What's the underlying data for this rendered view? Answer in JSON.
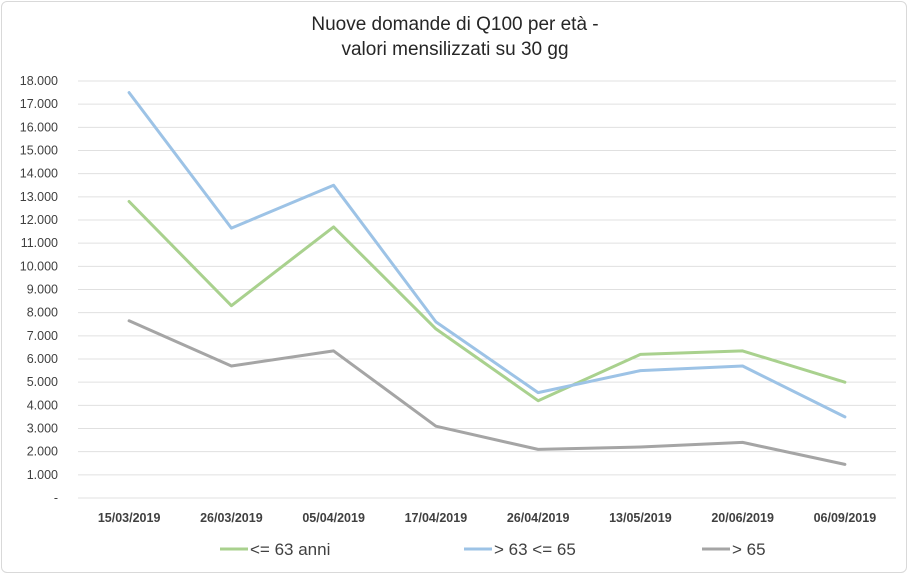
{
  "chart_data": {
    "type": "line",
    "title_lines": [
      "Nuove domande di Q100 per età -",
      "valori mensilizzati su 30 gg"
    ],
    "categories": [
      "15/03/2019",
      "26/03/2019",
      "05/04/2019",
      "17/04/2019",
      "26/04/2019",
      "13/05/2019",
      "20/06/2019",
      "06/09/2019"
    ],
    "y_tick_labels": [
      "-",
      "1.000",
      "2.000",
      "3.000",
      "4.000",
      "5.000",
      "6.000",
      "7.000",
      "8.000",
      "9.000",
      "10.000",
      "11.000",
      "12.000",
      "13.000",
      "14.000",
      "15.000",
      "16.000",
      "17.000",
      "18.000"
    ],
    "ylim": [
      0,
      18000
    ],
    "y_step": 1000,
    "grid": true,
    "legend_position": "bottom",
    "series": [
      {
        "name": "<=  63 anni",
        "color": "#a9d18e",
        "values": [
          12800,
          8300,
          11700,
          7300,
          4200,
          6200,
          6350,
          5000
        ]
      },
      {
        "name": "> 63 <= 65",
        "color": "#9dc3e6",
        "values": [
          17500,
          11650,
          13500,
          7600,
          4550,
          5500,
          5700,
          3500
        ]
      },
      {
        "name": "> 65",
        "color": "#a5a5a5",
        "values": [
          7650,
          5700,
          6350,
          3100,
          2100,
          2200,
          2400,
          1450
        ]
      }
    ]
  }
}
